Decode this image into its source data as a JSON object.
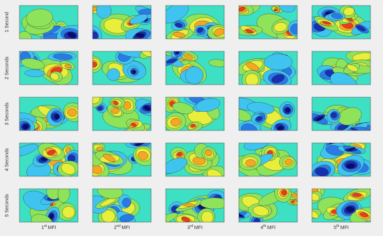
{
  "rows": [
    "1 Second",
    "2 Seconds",
    "3 Seconds",
    "4 Seconds",
    "5 Seconds"
  ],
  "columns": [
    {
      "ordinal": "1",
      "suffix": "st",
      "label": "MFI"
    },
    {
      "ordinal": "2",
      "suffix": "nd",
      "label": "MFI"
    },
    {
      "ordinal": "3",
      "suffix": "rd",
      "label": "MFI"
    },
    {
      "ordinal": "4",
      "suffix": "th",
      "label": "MFI"
    },
    {
      "ordinal": "5",
      "suffix": "th",
      "label": "MFI"
    }
  ]
}
